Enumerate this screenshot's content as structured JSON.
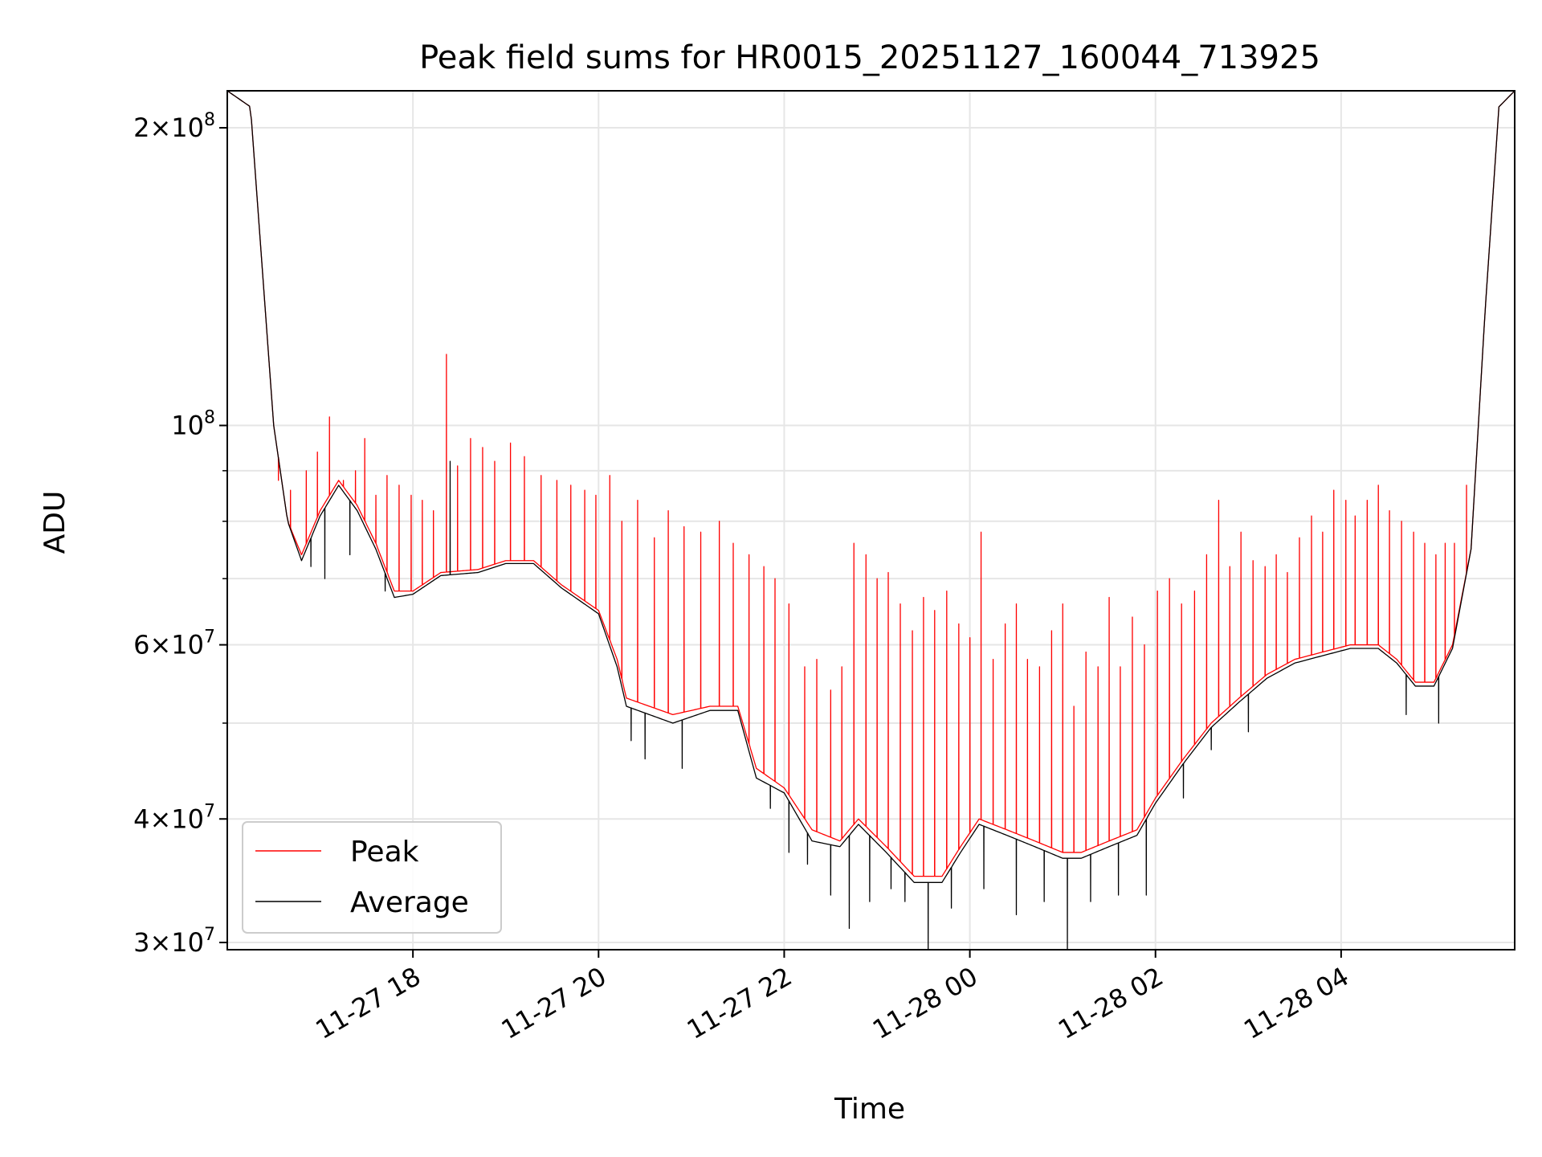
{
  "chart_data": {
    "type": "line",
    "title": "Peak field sums for HR0015_20251127_160044_713925",
    "xlabel": "Time",
    "ylabel": "ADU",
    "yscale": "log",
    "grid": true,
    "legend_position": "lower-left",
    "x_range_hours": [
      16.0,
      29.87
    ],
    "ylim": [
      29500000,
      218000000
    ],
    "x_ticks": [
      {
        "hour": 18,
        "label": "11-27 18"
      },
      {
        "hour": 20,
        "label": "11-27 20"
      },
      {
        "hour": 22,
        "label": "11-27 22"
      },
      {
        "hour": 24,
        "label": "11-28 00"
      },
      {
        "hour": 26,
        "label": "11-28 02"
      },
      {
        "hour": 28,
        "label": "11-28 04"
      }
    ],
    "y_major_ticks": [
      {
        "value": 30000000,
        "mantissa": "3",
        "exponent": "7"
      },
      {
        "value": 40000000,
        "mantissa": "4",
        "exponent": "7"
      },
      {
        "value": 60000000,
        "mantissa": "6",
        "exponent": "7"
      },
      {
        "value": 100000000,
        "mantissa": "",
        "exponent": "8"
      },
      {
        "value": 200000000,
        "mantissa": "2",
        "exponent": "8"
      }
    ],
    "y_minor_values": [
      50000000,
      70000000,
      80000000,
      90000000
    ],
    "colors": {
      "Peak": "#ff0000",
      "Average": "#000000"
    },
    "series": [
      {
        "name": "Peak",
        "base_curve": [
          [
            16.0,
            218000000
          ],
          [
            16.25,
            210000000
          ],
          [
            16.5,
            100000000
          ],
          [
            16.65,
            80000000
          ],
          [
            16.8,
            74000000
          ],
          [
            17.0,
            82000000
          ],
          [
            17.2,
            88000000
          ],
          [
            17.4,
            83000000
          ],
          [
            17.6,
            76000000
          ],
          [
            17.8,
            68000000
          ],
          [
            18.0,
            68000000
          ],
          [
            18.3,
            71000000
          ],
          [
            18.7,
            71500000
          ],
          [
            19.0,
            73000000
          ],
          [
            19.3,
            73000000
          ],
          [
            19.6,
            69000000
          ],
          [
            20.0,
            65000000
          ],
          [
            20.2,
            58000000
          ],
          [
            20.3,
            53000000
          ],
          [
            20.8,
            51000000
          ],
          [
            21.2,
            52000000
          ],
          [
            21.5,
            52000000
          ],
          [
            21.7,
            45000000
          ],
          [
            22.0,
            43000000
          ],
          [
            22.3,
            39000000
          ],
          [
            22.6,
            38000000
          ],
          [
            22.8,
            40000000
          ],
          [
            23.1,
            37500000
          ],
          [
            23.4,
            35000000
          ],
          [
            23.7,
            35000000
          ],
          [
            23.9,
            37500000
          ],
          [
            24.1,
            40000000
          ],
          [
            24.4,
            39000000
          ],
          [
            24.7,
            38000000
          ],
          [
            25.0,
            37000000
          ],
          [
            25.2,
            37000000
          ],
          [
            25.5,
            38000000
          ],
          [
            25.8,
            39000000
          ],
          [
            26.0,
            42000000
          ],
          [
            26.3,
            46000000
          ],
          [
            26.6,
            50000000
          ],
          [
            26.9,
            53000000
          ],
          [
            27.2,
            56000000
          ],
          [
            27.5,
            58000000
          ],
          [
            27.8,
            59000000
          ],
          [
            28.1,
            60000000
          ],
          [
            28.4,
            60000000
          ],
          [
            28.6,
            58000000
          ],
          [
            28.8,
            55000000
          ],
          [
            29.0,
            55000000
          ],
          [
            29.2,
            60000000
          ],
          [
            29.4,
            75000000
          ],
          [
            29.55,
            130000000
          ],
          [
            29.7,
            210000000
          ],
          [
            29.87,
            218000000
          ]
        ],
        "spikes": [
          [
            16.55,
            88000000
          ],
          [
            16.68,
            86000000
          ],
          [
            16.85,
            90000000
          ],
          [
            16.97,
            94000000
          ],
          [
            17.1,
            102000000
          ],
          [
            17.25,
            88000000
          ],
          [
            17.38,
            90000000
          ],
          [
            17.48,
            97000000
          ],
          [
            17.6,
            85000000
          ],
          [
            17.72,
            89000000
          ],
          [
            17.85,
            87000000
          ],
          [
            17.98,
            85000000
          ],
          [
            18.1,
            84000000
          ],
          [
            18.22,
            82000000
          ],
          [
            18.36,
            118000000
          ],
          [
            18.48,
            91000000
          ],
          [
            18.62,
            97000000
          ],
          [
            18.75,
            95000000
          ],
          [
            18.88,
            92000000
          ],
          [
            19.05,
            96000000
          ],
          [
            19.2,
            93000000
          ],
          [
            19.38,
            89000000
          ],
          [
            19.55,
            88000000
          ],
          [
            19.7,
            87000000
          ],
          [
            19.85,
            86000000
          ],
          [
            19.97,
            85000000
          ],
          [
            20.12,
            89000000
          ],
          [
            20.25,
            80000000
          ],
          [
            20.42,
            84000000
          ],
          [
            20.6,
            77000000
          ],
          [
            20.75,
            82000000
          ],
          [
            20.92,
            79000000
          ],
          [
            21.1,
            78000000
          ],
          [
            21.3,
            80000000
          ],
          [
            21.45,
            76000000
          ],
          [
            21.62,
            74000000
          ],
          [
            21.78,
            72000000
          ],
          [
            21.9,
            70000000
          ],
          [
            22.05,
            66000000
          ],
          [
            22.22,
            57000000
          ],
          [
            22.35,
            58000000
          ],
          [
            22.5,
            54000000
          ],
          [
            22.62,
            57000000
          ],
          [
            22.75,
            76000000
          ],
          [
            22.88,
            74000000
          ],
          [
            23.0,
            70000000
          ],
          [
            23.12,
            71000000
          ],
          [
            23.25,
            66000000
          ],
          [
            23.38,
            62000000
          ],
          [
            23.5,
            67000000
          ],
          [
            23.62,
            65000000
          ],
          [
            23.75,
            68000000
          ],
          [
            23.88,
            63000000
          ],
          [
            24.0,
            61000000
          ],
          [
            24.12,
            78000000
          ],
          [
            24.25,
            58000000
          ],
          [
            24.38,
            63000000
          ],
          [
            24.5,
            66000000
          ],
          [
            24.62,
            58000000
          ],
          [
            24.75,
            57000000
          ],
          [
            24.88,
            62000000
          ],
          [
            25.0,
            66000000
          ],
          [
            25.12,
            52000000
          ],
          [
            25.25,
            59000000
          ],
          [
            25.38,
            57000000
          ],
          [
            25.5,
            67000000
          ],
          [
            25.62,
            57000000
          ],
          [
            25.75,
            64000000
          ],
          [
            25.88,
            60000000
          ],
          [
            26.02,
            68000000
          ],
          [
            26.15,
            70000000
          ],
          [
            26.28,
            66000000
          ],
          [
            26.42,
            68000000
          ],
          [
            26.55,
            74000000
          ],
          [
            26.68,
            84000000
          ],
          [
            26.8,
            72000000
          ],
          [
            26.92,
            78000000
          ],
          [
            27.05,
            73000000
          ],
          [
            27.18,
            72000000
          ],
          [
            27.3,
            74000000
          ],
          [
            27.42,
            71000000
          ],
          [
            27.55,
            77000000
          ],
          [
            27.68,
            81000000
          ],
          [
            27.8,
            78000000
          ],
          [
            27.92,
            86000000
          ],
          [
            28.05,
            84000000
          ],
          [
            28.15,
            81000000
          ],
          [
            28.28,
            84000000
          ],
          [
            28.4,
            87000000
          ],
          [
            28.52,
            82000000
          ],
          [
            28.65,
            80000000
          ],
          [
            28.78,
            78000000
          ],
          [
            28.9,
            76000000
          ],
          [
            29.02,
            74000000
          ],
          [
            29.12,
            76000000
          ],
          [
            29.22,
            76000000
          ],
          [
            29.35,
            87000000
          ]
        ]
      },
      {
        "name": "Average",
        "base_curve": [
          [
            16.0,
            218000000
          ],
          [
            16.25,
            210000000
          ],
          [
            16.5,
            100000000
          ],
          [
            16.65,
            80000000
          ],
          [
            16.8,
            73000000
          ],
          [
            17.0,
            81000000
          ],
          [
            17.2,
            87000000
          ],
          [
            17.4,
            82000000
          ],
          [
            17.6,
            75000000
          ],
          [
            17.8,
            67000000
          ],
          [
            18.0,
            67500000
          ],
          [
            18.3,
            70500000
          ],
          [
            18.7,
            71000000
          ],
          [
            19.0,
            72500000
          ],
          [
            19.3,
            72500000
          ],
          [
            19.6,
            68500000
          ],
          [
            20.0,
            64500000
          ],
          [
            20.2,
            57000000
          ],
          [
            20.3,
            52000000
          ],
          [
            20.8,
            50000000
          ],
          [
            21.2,
            51500000
          ],
          [
            21.5,
            51500000
          ],
          [
            21.7,
            44000000
          ],
          [
            22.0,
            42500000
          ],
          [
            22.3,
            38000000
          ],
          [
            22.6,
            37500000
          ],
          [
            22.8,
            39500000
          ],
          [
            23.1,
            37000000
          ],
          [
            23.4,
            34500000
          ],
          [
            23.7,
            34500000
          ],
          [
            23.9,
            37000000
          ],
          [
            24.1,
            39500000
          ],
          [
            24.4,
            38500000
          ],
          [
            24.7,
            37500000
          ],
          [
            25.0,
            36500000
          ],
          [
            25.2,
            36500000
          ],
          [
            25.5,
            37500000
          ],
          [
            25.8,
            38500000
          ],
          [
            26.0,
            41500000
          ],
          [
            26.3,
            45500000
          ],
          [
            26.6,
            49500000
          ],
          [
            26.9,
            52500000
          ],
          [
            27.2,
            55500000
          ],
          [
            27.5,
            57500000
          ],
          [
            27.8,
            58500000
          ],
          [
            28.1,
            59500000
          ],
          [
            28.4,
            59500000
          ],
          [
            28.6,
            57500000
          ],
          [
            28.8,
            54500000
          ],
          [
            29.0,
            54500000
          ],
          [
            29.2,
            59500000
          ],
          [
            29.4,
            75000000
          ],
          [
            29.55,
            130000000
          ],
          [
            29.7,
            210000000
          ],
          [
            29.87,
            218000000
          ]
        ],
        "dips": [
          [
            16.9,
            72000000
          ],
          [
            17.05,
            70000000
          ],
          [
            17.32,
            74000000
          ],
          [
            17.7,
            68000000
          ],
          [
            18.4,
            92000000
          ],
          [
            20.35,
            48000000
          ],
          [
            20.5,
            46000000
          ],
          [
            20.9,
            45000000
          ],
          [
            21.85,
            41000000
          ],
          [
            22.05,
            37000000
          ],
          [
            22.25,
            36000000
          ],
          [
            22.5,
            33500000
          ],
          [
            22.7,
            31000000
          ],
          [
            22.92,
            33000000
          ],
          [
            23.15,
            34000000
          ],
          [
            23.3,
            33000000
          ],
          [
            23.55,
            29500000
          ],
          [
            23.8,
            32500000
          ],
          [
            24.15,
            34000000
          ],
          [
            24.5,
            32000000
          ],
          [
            24.8,
            33000000
          ],
          [
            25.05,
            29500000
          ],
          [
            25.3,
            33000000
          ],
          [
            25.6,
            33500000
          ],
          [
            25.9,
            33500000
          ],
          [
            26.3,
            42000000
          ],
          [
            26.6,
            47000000
          ],
          [
            27.0,
            49000000
          ],
          [
            28.7,
            51000000
          ],
          [
            29.05,
            50000000
          ]
        ]
      }
    ]
  }
}
